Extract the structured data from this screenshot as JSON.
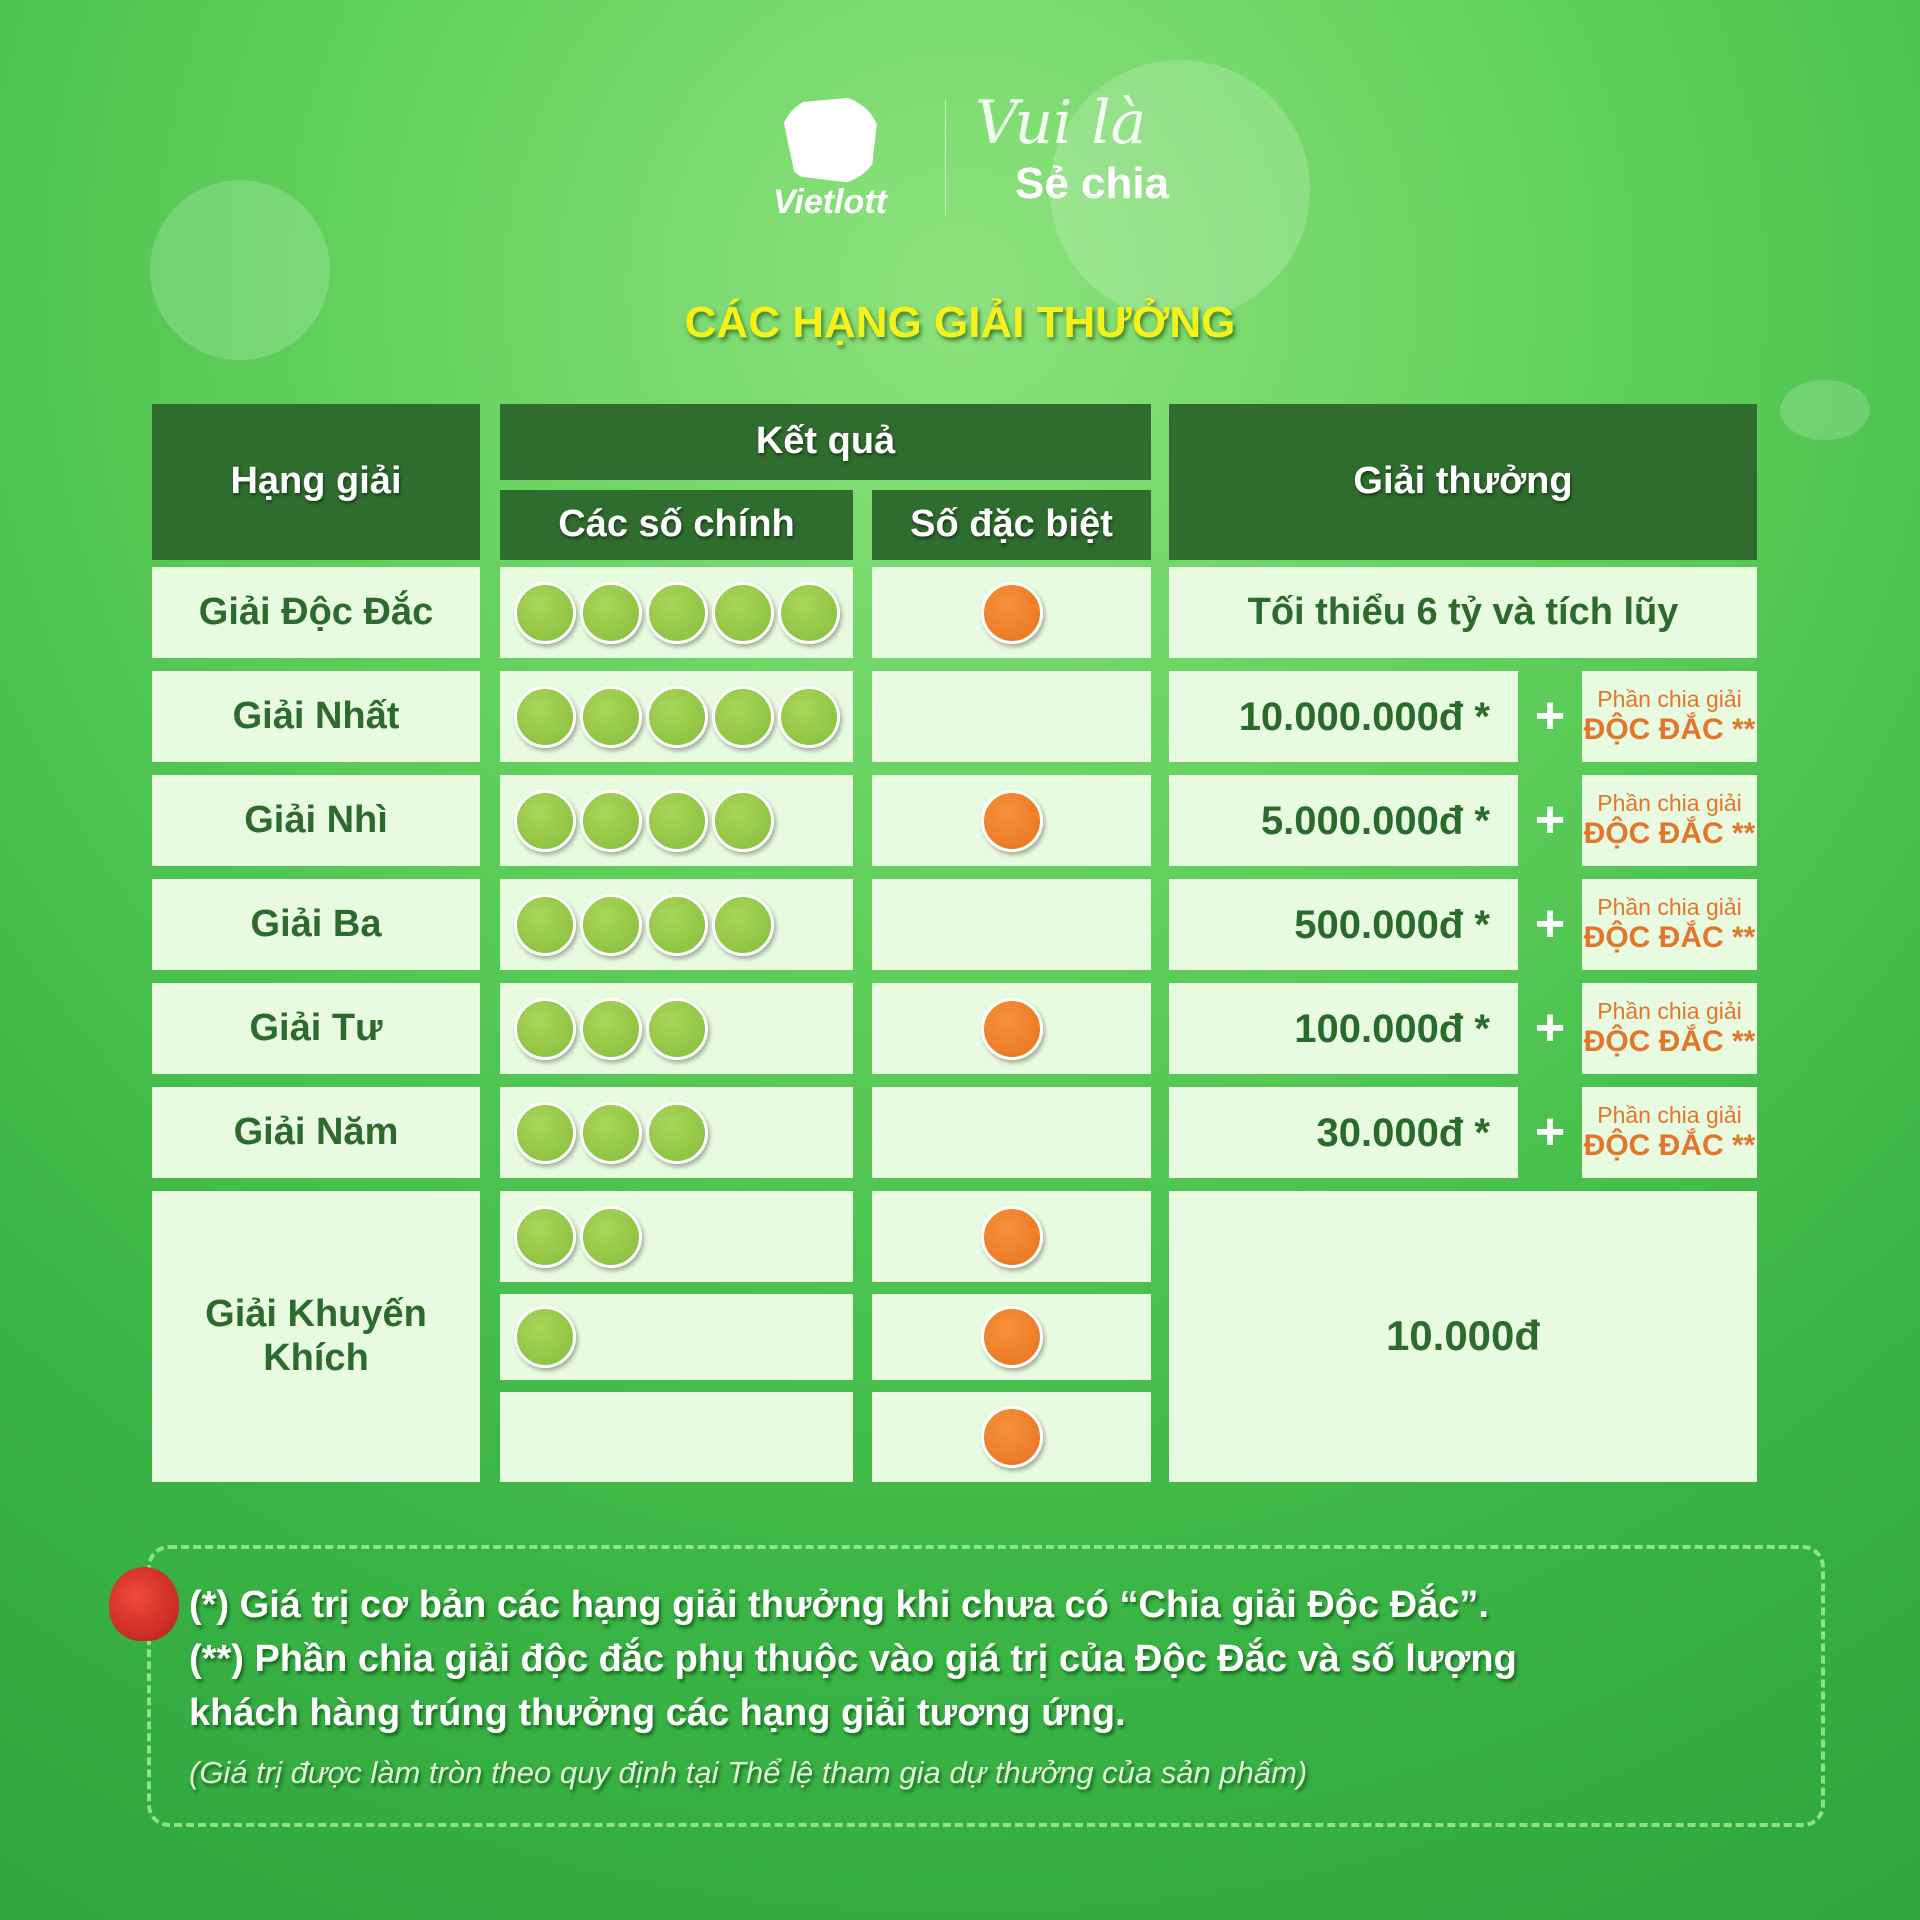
{
  "brand": {
    "logo": "Vietlott",
    "slogan_line1": "Vui là",
    "slogan_line2": "Sẻ chia"
  },
  "title": "CÁC HẠNG GIẢI THƯỞNG",
  "header": {
    "rank": "Hạng giải",
    "result": "Kết quả",
    "main_numbers": "Các số chính",
    "special_number": "Số đặc biệt",
    "prize": "Giải thưởng"
  },
  "rows": [
    {
      "rank": "Giải Độc Đắc",
      "main_balls": 5,
      "special": true,
      "prize": "Tối thiểu 6 tỷ và tích lũy"
    },
    {
      "rank": "Giải Nhất",
      "main_balls": 5,
      "special": false,
      "prize": "10.000.000đ *"
    },
    {
      "rank": "Giải Nhì",
      "main_balls": 4,
      "special": true,
      "prize": "5.000.000đ *"
    },
    {
      "rank": "Giải Ba",
      "main_balls": 4,
      "special": false,
      "prize": "500.000đ *"
    },
    {
      "rank": "Giải Tư",
      "main_balls": 3,
      "special": true,
      "prize": "100.000đ *"
    },
    {
      "rank": "Giải Năm",
      "main_balls": 3,
      "special": false,
      "prize": "30.000đ *"
    }
  ],
  "share": {
    "line1": "Phần chia giải",
    "line2": "ĐỘC ĐẮC **",
    "plus": "+"
  },
  "consolation": {
    "rank": "Giải Khuyến Khích",
    "combos": [
      {
        "main_balls": 2,
        "special": true
      },
      {
        "main_balls": 1,
        "special": true
      },
      {
        "main_balls": 0,
        "special": true
      }
    ],
    "prize": "10.000đ"
  },
  "notes": {
    "n1": "(*) Giá trị cơ bản các hạng giải thưởng khi chưa có “Chia giải Độc Đắc”.",
    "n2a": "(**) Phần chia giải độc đắc phụ thuộc vào giá trị của Độc Đắc và số lượng",
    "n2b": "khách hàng trúng thưởng các hạng giải tương ứng.",
    "n3": "(Giá trị được làm tròn theo quy định tại Thể lệ tham gia dự thưởng của sản phẩm)"
  },
  "colors": {
    "header": "#2f6d2e",
    "cell": "#e8fbe0",
    "main_ball": "#8cc23f",
    "special_ball": "#ec7a24",
    "title": "#f4f21a"
  }
}
